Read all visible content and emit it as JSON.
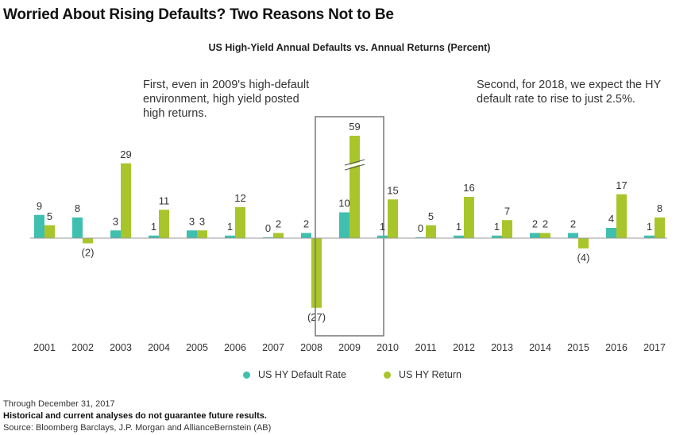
{
  "page_title": "Worried About Rising Defaults? Two Reasons Not to Be",
  "annotations": {
    "first": "First, even in 2009's high-default environment, high yield posted high returns.",
    "second": "Second, for 2018, we expect the HY default rate to rise to just 2.5%."
  },
  "colors": {
    "default_rate": "#3fbfb0",
    "return": "#a8c62b",
    "axis": "#999999",
    "highlight_box": "#777777"
  },
  "chart_data": {
    "type": "bar",
    "title": "US High-Yield Annual Defaults vs. Annual Returns (Percent)",
    "xlabel": "",
    "ylabel": "",
    "categories": [
      "2001",
      "2002",
      "2003",
      "2004",
      "2005",
      "2006",
      "2007",
      "2008",
      "2009",
      "2010",
      "2011",
      "2012",
      "2013",
      "2014",
      "2015",
      "2016",
      "2017"
    ],
    "series": [
      {
        "name": "US HY Default Rate",
        "values": [
          9,
          8,
          3,
          1,
          3,
          1,
          0,
          2,
          10,
          1,
          0,
          1,
          1,
          2,
          2,
          4,
          1
        ],
        "labels": [
          "9",
          "8",
          "3",
          "1",
          "3",
          "1",
          "0",
          "2",
          "10",
          "1",
          "0",
          "1",
          "1",
          "2",
          "2",
          "4",
          "1"
        ]
      },
      {
        "name": "US HY Return",
        "values": [
          5,
          -2,
          29,
          11,
          3,
          12,
          2,
          -27,
          59,
          15,
          5,
          16,
          7,
          2,
          -4,
          17,
          8
        ],
        "labels": [
          "5",
          "(2)",
          "29",
          "11",
          "3",
          "12",
          "2",
          "(27)",
          "59",
          "15",
          "5",
          "16",
          "7",
          "2",
          "(4)",
          "17",
          "8"
        ]
      }
    ],
    "ylim": [
      -27,
      59
    ],
    "axis_break": {
      "category": "2009",
      "series": "US HY Return"
    },
    "highlight": "2009",
    "grid": false,
    "legend": "bottom-center"
  },
  "footer": {
    "date": "Through December 31, 2017",
    "disclaimer": "Historical and current analyses do not guarantee future results.",
    "source": "Source: Bloomberg Barclays, J.P. Morgan and AllianceBernstein (AB)"
  }
}
